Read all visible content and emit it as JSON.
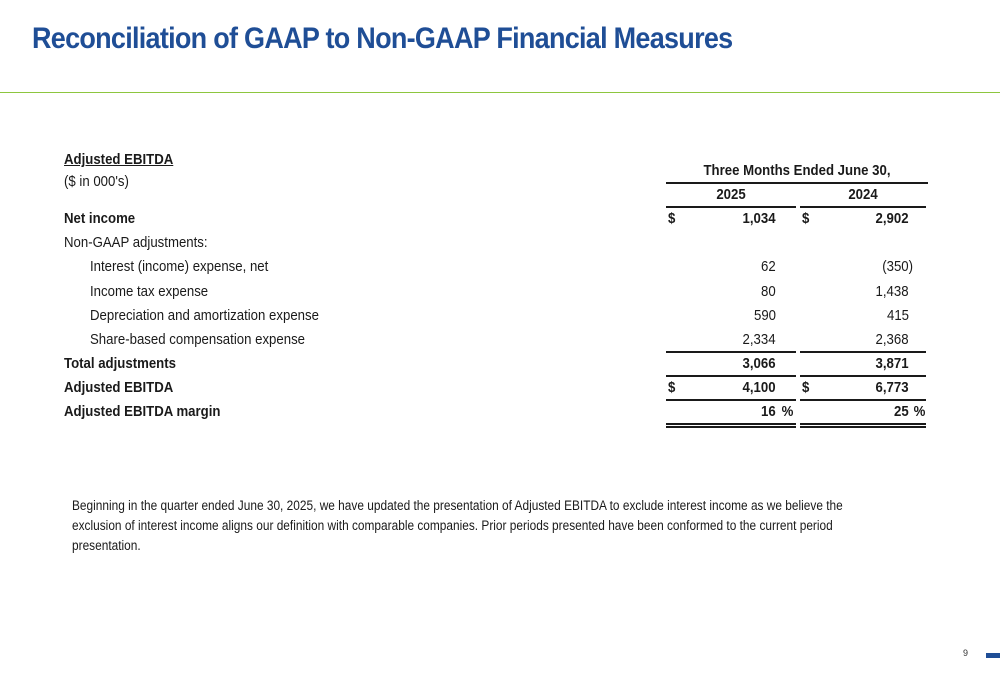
{
  "title": "Reconciliation of GAAP to Non-GAAP Financial Measures",
  "table": {
    "heading": "Adjusted EBITDA",
    "units": "($ in 000's)",
    "period_header": "Three Months Ended June 30,",
    "years": [
      "2025",
      "2024"
    ],
    "currency_symbol": "$",
    "percent_symbol": "%",
    "rows": {
      "net_income": {
        "label": "Net income",
        "v2025": "1,034",
        "v2024": "2,902"
      },
      "adjustments_header": {
        "label": "Non-GAAP adjustments:"
      },
      "interest": {
        "label": "Interest (income) expense, net",
        "v2025": "62",
        "v2024": "(350)"
      },
      "income_tax": {
        "label": "Income tax expense",
        "v2025": "80",
        "v2024": "1,438"
      },
      "depreciation": {
        "label": "Depreciation and amortization expense",
        "v2025": "590",
        "v2024": "415"
      },
      "share_based": {
        "label": "Share-based compensation expense",
        "v2025": "2,334",
        "v2024": "2,368"
      },
      "total_adjustments": {
        "label": "Total adjustments",
        "v2025": "3,066",
        "v2024": "3,871"
      },
      "adjusted_ebitda": {
        "label": "Adjusted EBITDA",
        "v2025": "4,100",
        "v2024": "6,773"
      },
      "margin": {
        "label": "Adjusted EBITDA margin",
        "v2025": "16",
        "v2024": "25"
      }
    }
  },
  "note": "Beginning in the quarter ended June 30, 2025, we have updated the presentation of Adjusted EBITDA to exclude interest income as we believe the exclusion of interest income aligns our definition with comparable companies. Prior periods presented have been conformed to the current period presentation.",
  "page_number": "9",
  "colors": {
    "title": "#1f4e96",
    "rule": "#8dc63f",
    "page_mark": "#1f4e96"
  }
}
